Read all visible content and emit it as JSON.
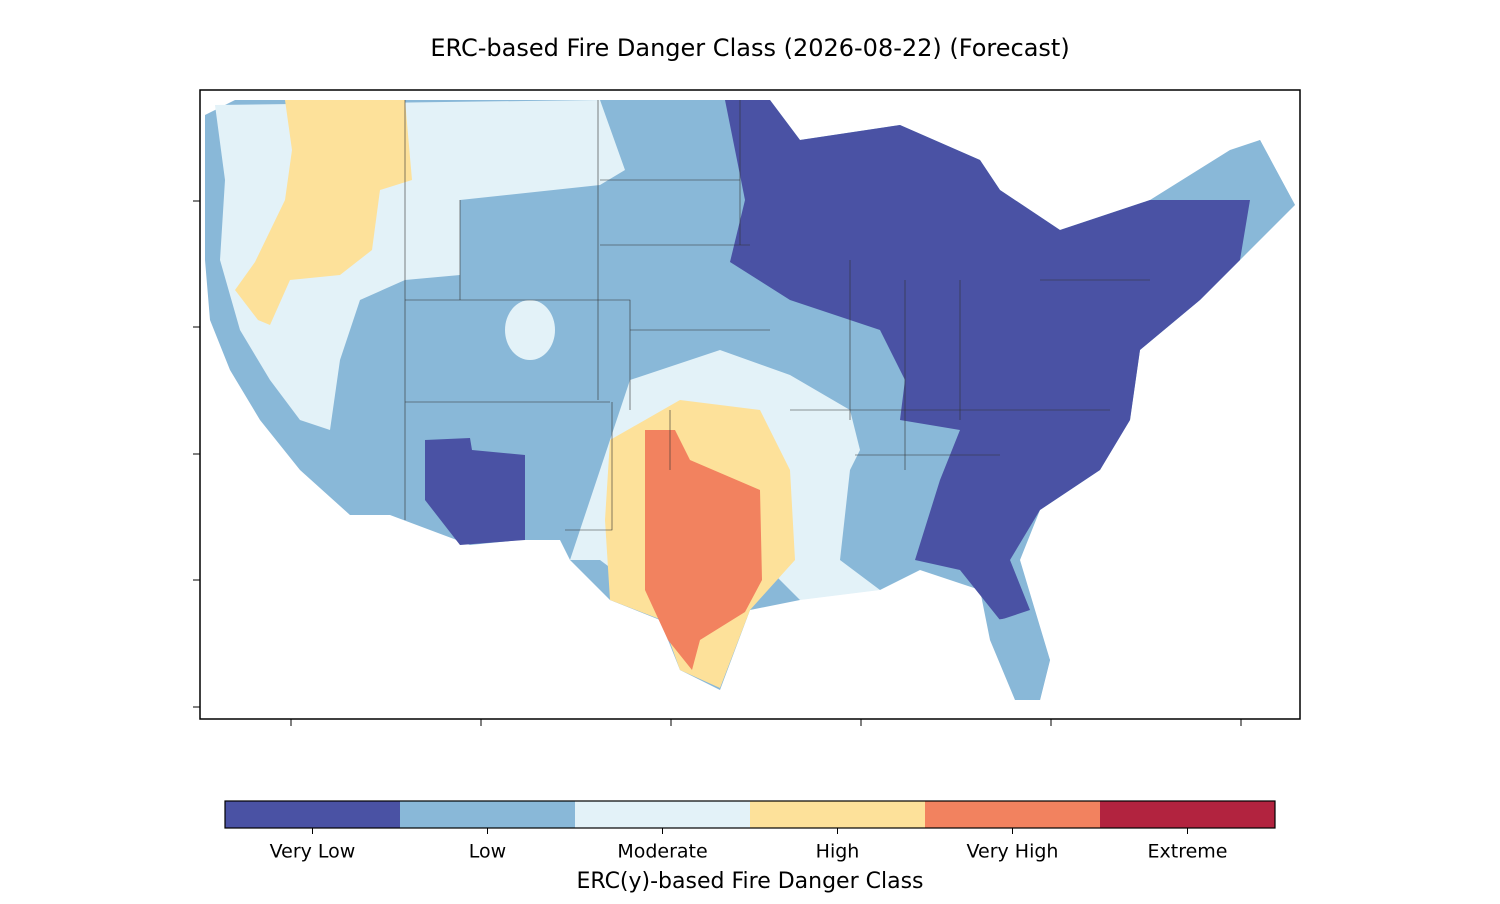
{
  "chart_data": {
    "type": "map",
    "title": "ERC-based Fire Danger Class (2026-08-22) (Forecast)",
    "colorbar": {
      "label": "ERC(y)-based Fire Danger Class",
      "categories": [
        "Very Low",
        "Low",
        "Moderate",
        "High",
        "Very High",
        "Extreme"
      ],
      "colors": [
        "#4a52a4",
        "#89b8d8",
        "#e3f2f8",
        "#fde19a",
        "#f2825f",
        "#b2233f"
      ]
    }
  }
}
